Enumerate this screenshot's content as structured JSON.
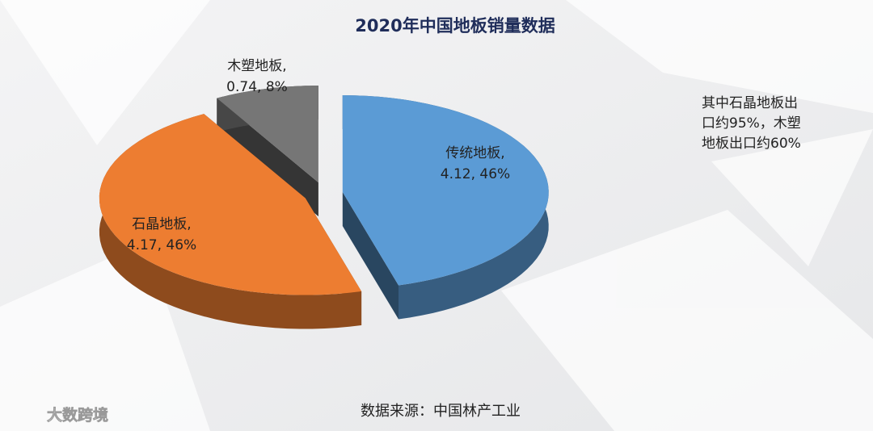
{
  "chart_data": {
    "type": "pie3d",
    "title": "2020年中国地板销量数据",
    "categories": [
      "传统地板,",
      "石晶地板,",
      "木塑地板,"
    ],
    "values": [
      4.12,
      4.17,
      0.74
    ],
    "value_labels": [
      "4.12, 46%",
      "4.17, 46%",
      "0.74, 8%"
    ],
    "colors": [
      "#5b9bd5",
      "#ed7d31",
      "#767676"
    ],
    "note": [
      "其中石晶地板出",
      "口约95%，木塑",
      "地板出口约60%"
    ],
    "source": "数据来源：中国林产工业",
    "watermark": "大数跨境"
  }
}
